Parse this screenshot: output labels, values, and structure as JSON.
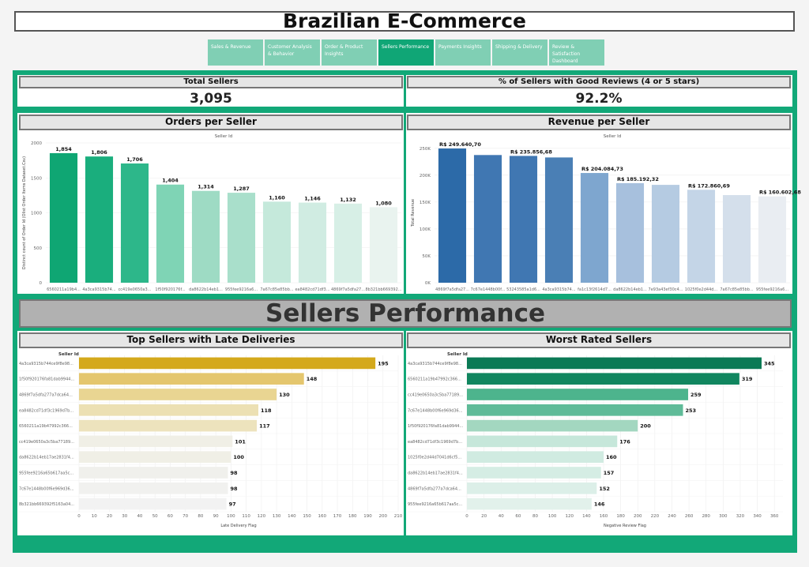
{
  "title": "Brazilian E-Commerce",
  "tabs": [
    {
      "label": "Sales & Revenue",
      "active": false
    },
    {
      "label": "Customer Analysis & Behavior",
      "active": false
    },
    {
      "label": "Order & Product Insights",
      "active": false
    },
    {
      "label": "Sellers Performance",
      "active": true
    },
    {
      "label": "Payments Insights",
      "active": false
    },
    {
      "label": "Shipping & Delivery",
      "active": false
    },
    {
      "label": "Review & Satisfaction Dashboard",
      "active": false
    }
  ],
  "kpis": {
    "total_sellers": {
      "label": "Total Sellers",
      "value": "3,095"
    },
    "good_reviews": {
      "label": "% of Sellers with Good Reviews (4 or 5 stars)",
      "value": "92.2%"
    }
  },
  "banner": "Sellers Performance",
  "colors": {
    "frame": "#12a878",
    "orders_scale": [
      "#0fa673",
      "#1aae7d",
      "#2db78a",
      "#7fd4b5",
      "#9edbc4",
      "#a9dfcb",
      "#c5e9db",
      "#d0ece2",
      "#d7efe6",
      "#e9f3ef"
    ],
    "revenue_scale": [
      "#2c6aa8",
      "#4077b2",
      "#4077b2",
      "#4a7fb5",
      "#7ea6cf",
      "#a7c0dd",
      "#b5cbe2",
      "#c4d5e7",
      "#d4dfeb",
      "#e9edf2"
    ],
    "late_scale": [
      "#d4a91c",
      "#e4c66e",
      "#e9d592",
      "#ece0b3",
      "#ede3bd",
      "#f0efe6",
      "#f0efe6",
      "#f0f0ec",
      "#f1f1ef",
      "#f2f2f2"
    ],
    "worst_scale": [
      "#0b7a55",
      "#11865f",
      "#4db48d",
      "#5fbb98",
      "#a3d7c0",
      "#c6e7da",
      "#d0ebe1",
      "#d5ede4",
      "#dcefe8",
      "#e2f1eb"
    ]
  },
  "chart_data": [
    {
      "id": "orders",
      "type": "bar",
      "title": "Orders per Seller",
      "top_label": "Seller Id",
      "ylabel": "Distinct count of Order Id (Olist Order Items Dataset.Csv)",
      "ylim": [
        0,
        2000
      ],
      "yticks": [
        "0",
        "500",
        "1000",
        "1500",
        "2000"
      ],
      "categories": [
        "6560211a19b4...",
        "4a3ca9315b74...",
        "cc419e0650a3...",
        "1f50f920176f...",
        "da8622b14eb1...",
        "955fee9216a6...",
        "7a67c85e85bb...",
        "ea8482cd71df3...",
        "4869f7a5dfa27...",
        "8b321bb669392..."
      ],
      "values": [
        1854,
        1806,
        1706,
        1404,
        1314,
        1287,
        1160,
        1146,
        1132,
        1080
      ],
      "data_labels": [
        "1,854",
        "1,806",
        "1,706",
        "1,404",
        "1,314",
        "1,287",
        "1,160",
        "1,146",
        "1,132",
        "1,080"
      ]
    },
    {
      "id": "revenue",
      "type": "bar",
      "title": "Revenue per Seller",
      "top_label": "Seller Id",
      "ylabel": "Total Revenue",
      "ylim": [
        0,
        260000
      ],
      "ytick_values": [
        0,
        50000,
        100000,
        150000,
        200000,
        250000
      ],
      "yticks": [
        "0K",
        "50K",
        "100K",
        "150K",
        "200K",
        "250K"
      ],
      "categories": [
        "4869f7a5dfa27...",
        "7c67e1448b00f...",
        "53243585a1d6...",
        "4a3ca9315b74...",
        "fa1c13f2614d7...",
        "da8622b14eb1...",
        "7e93a43ef30c4...",
        "1025f0e2d44d...",
        "7a67c85e85bb...",
        "955fee9216a6..."
      ],
      "values": [
        249640.7,
        237500,
        235856.68,
        233000,
        204084.73,
        185192.32,
        182000,
        172860.69,
        163000,
        160602.68
      ],
      "data_labels": [
        "R$ 249.640,70",
        "",
        "R$ 235.856,68",
        "",
        "R$ 204.084,73",
        "R$ 185.192,32",
        "",
        "R$ 172.860,69",
        "",
        "R$ 160.602,68"
      ]
    },
    {
      "id": "late",
      "type": "bar",
      "orientation": "horizontal",
      "title": "Top Sellers with Late Deliveries",
      "top_label": "Seller Id",
      "xlabel": "Late Delivery Flag",
      "xlim": [
        0,
        210
      ],
      "xticks": [
        0,
        10,
        20,
        30,
        40,
        50,
        60,
        70,
        80,
        90,
        100,
        110,
        120,
        130,
        140,
        150,
        160,
        170,
        180,
        190,
        200,
        210
      ],
      "categories": [
        "4a3ca9315b744ce9f8e98...",
        "1f50f920176fa81dab9944...",
        "4869f7a5dfa277a7dca64...",
        "ea8482cd71df3c1969d7b...",
        "6560211a19b47992c366...",
        "cc419e0650a3c5ba77189...",
        "da8622b14eb17ae2831f4...",
        "955fee9216a65b617aa5c...",
        "7c67e1448b00f6e969d36...",
        "8b321bb669392f5163a04..."
      ],
      "values": [
        195,
        148,
        130,
        118,
        117,
        101,
        100,
        98,
        98,
        97
      ]
    },
    {
      "id": "worst",
      "type": "bar",
      "orientation": "horizontal",
      "title": "Worst Rated Sellers",
      "top_label": "Seller Id",
      "xlabel": "Negative Review Flag",
      "xlim": [
        0,
        370
      ],
      "xticks": [
        0,
        20,
        40,
        60,
        80,
        100,
        120,
        140,
        160,
        180,
        200,
        220,
        240,
        260,
        280,
        300,
        320,
        340,
        360
      ],
      "categories": [
        "4a3ca9315b744ce9f8e98...",
        "6560211a19b47992c366...",
        "cc419e0650a3c5ba77189...",
        "7c67e1448b00f6e969d36...",
        "1f50f920176fa81dab9944...",
        "ea8482cd71df3c1969d7b...",
        "1025f0e2d44d7041d6cf5...",
        "da8622b14eb17ae2831f4...",
        "4869f7a5dfa277a7dca64...",
        "955fee9216a65b617aa5c..."
      ],
      "values": [
        345,
        319,
        259,
        253,
        200,
        176,
        160,
        157,
        152,
        146
      ]
    }
  ]
}
